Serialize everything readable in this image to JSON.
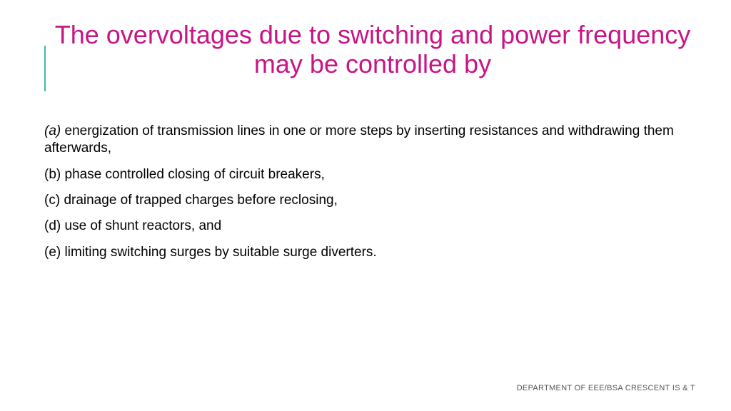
{
  "title": "The overvoltages due to switching and power frequency may be controlled by",
  "title_color": "#c71585",
  "accent_color": "#3fb8af",
  "body_color": "#000000",
  "background_color": "#ffffff",
  "title_fontsize": 36,
  "body_fontsize": 19,
  "footer_fontsize": 11,
  "items": [
    {
      "label": "(a) ",
      "text": "energization of transmission lines in one or more steps by inserting resistances and withdrawing them afterwards,",
      "label_italic": true
    },
    {
      "label": "(b) ",
      "text": "phase controlled closing of circuit breakers,",
      "label_italic": false
    },
    {
      "label": "(c) ",
      "text": "drainage of trapped charges before reclosing,",
      "label_italic": false
    },
    {
      "label": "(d) ",
      "text": "use of shunt reactors, and",
      "label_italic": false
    },
    {
      "label": "(e) ",
      "text": "limiting switching surges by suitable surge diverters.",
      "label_italic": false
    }
  ],
  "footer": "DEPARTMENT OF EEE/BSA CRESCENT IS & T"
}
